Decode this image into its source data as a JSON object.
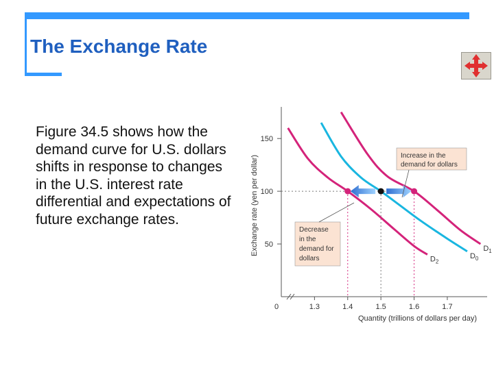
{
  "slide": {
    "title": "The Exchange Rate",
    "body_text": "Figure 34.5 shows how the demand curve for U.S. dollars shifts in response to changes in the U.S. interest rate differential and expectations of future exchange rates."
  },
  "nav_button": {
    "icon": "four-way-move-arrows-icon",
    "color": "#e03030"
  },
  "colors": {
    "accent": "#3399ff",
    "title": "#1f5fbf",
    "d0": "#19b6e0",
    "shifted": "#d4237a"
  },
  "chart_data": {
    "type": "line",
    "xlabel": "Quantity (trillions of dollars per day)",
    "ylabel": "Exchange rate (yen per dollar)",
    "x_ticks": [
      "0",
      "1.3",
      "1.4",
      "1.5",
      "1.6",
      "1.7"
    ],
    "y_ticks": [
      "50",
      "100",
      "150"
    ],
    "xlim": [
      1.2,
      1.82
    ],
    "ylim": [
      0,
      180
    ],
    "axis_break": true,
    "grid": false,
    "series": [
      {
        "name": "D0",
        "label": "D",
        "subscript": "0",
        "color": "#19b6e0",
        "points": [
          [
            1.32,
            165
          ],
          [
            1.38,
            133
          ],
          [
            1.44,
            113
          ],
          [
            1.5,
            100
          ],
          [
            1.56,
            86
          ],
          [
            1.62,
            72
          ],
          [
            1.7,
            55
          ],
          [
            1.76,
            43
          ]
        ]
      },
      {
        "name": "D1",
        "label": "D",
        "subscript": "1",
        "color": "#d4237a",
        "points": [
          [
            1.38,
            175
          ],
          [
            1.46,
            135
          ],
          [
            1.52,
            114
          ],
          [
            1.6,
            100
          ],
          [
            1.67,
            82
          ],
          [
            1.74,
            63
          ],
          [
            1.8,
            50
          ]
        ]
      },
      {
        "name": "D2",
        "label": "D",
        "subscript": "2",
        "color": "#d4237a",
        "points": [
          [
            1.22,
            160
          ],
          [
            1.28,
            131
          ],
          [
            1.34,
            113
          ],
          [
            1.4,
            100
          ],
          [
            1.47,
            83
          ],
          [
            1.54,
            64
          ],
          [
            1.6,
            48
          ],
          [
            1.64,
            40
          ]
        ]
      }
    ],
    "reference": {
      "y": 100,
      "x_values": [
        1.4,
        1.5,
        1.6
      ]
    },
    "highlighted_x_ticks": [
      "1.4",
      "1.6"
    ],
    "points": [
      {
        "x": 1.4,
        "y": 100,
        "color": "#d4237a"
      },
      {
        "x": 1.5,
        "y": 100,
        "color": "#111111"
      },
      {
        "x": 1.6,
        "y": 100,
        "color": "#d4237a"
      }
    ],
    "annotations": [
      {
        "lines": [
          "Increase in the",
          "demand for dollars"
        ],
        "points_to": "D1"
      },
      {
        "lines": [
          "Decrease",
          "in the",
          "demand for",
          "dollars"
        ],
        "points_to": "D2"
      }
    ]
  }
}
